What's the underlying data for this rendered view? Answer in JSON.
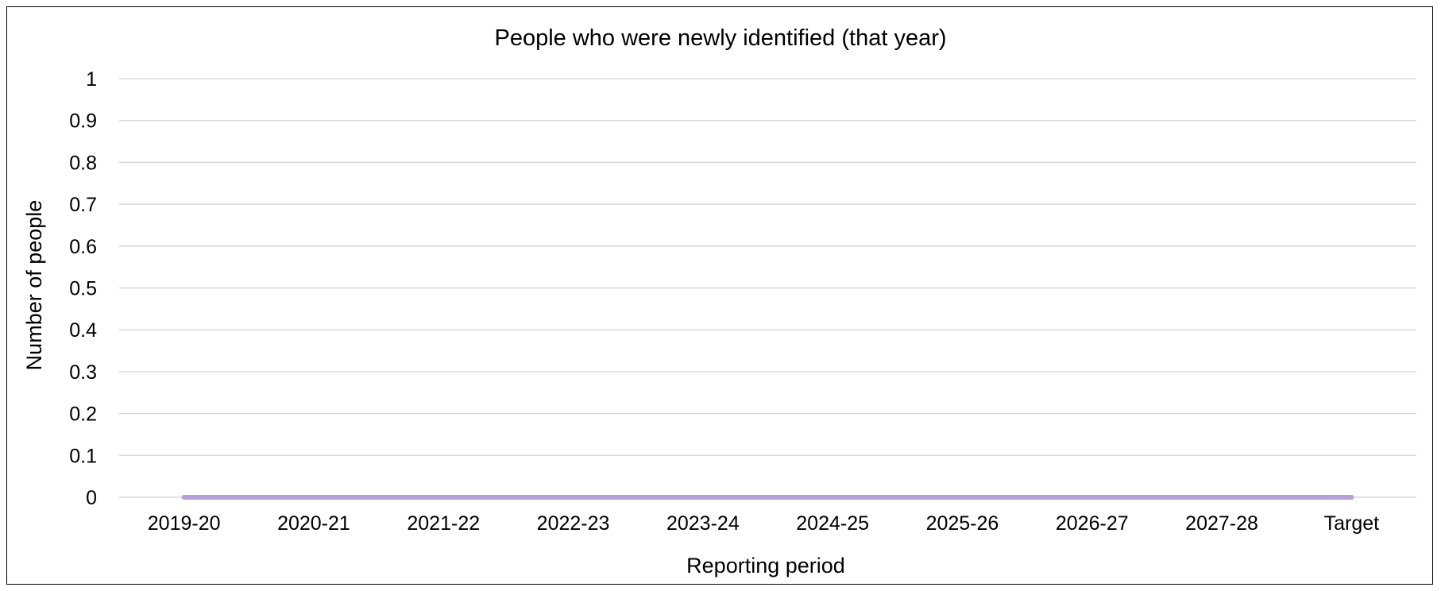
{
  "chart_data": {
    "type": "line",
    "title": "People who were newly identified (that year)",
    "xlabel": "Reporting period",
    "ylabel": "Number of people",
    "categories": [
      "2019-20",
      "2020-21",
      "2021-22",
      "2022-23",
      "2023-24",
      "2024-25",
      "2025-26",
      "2026-27",
      "2027-28",
      "Target"
    ],
    "series": [
      {
        "values": [
          0,
          0,
          0,
          0,
          0,
          0,
          0,
          0,
          0,
          0
        ],
        "color": "#b4a2d8"
      }
    ],
    "ylim": [
      0,
      1
    ],
    "yticks": [
      "0",
      "0.1",
      "0.2",
      "0.3",
      "0.4",
      "0.5",
      "0.6",
      "0.7",
      "0.8",
      "0.9",
      "1"
    ],
    "grid": true,
    "legend": "none",
    "gridline_color": "#d9d9d9"
  }
}
